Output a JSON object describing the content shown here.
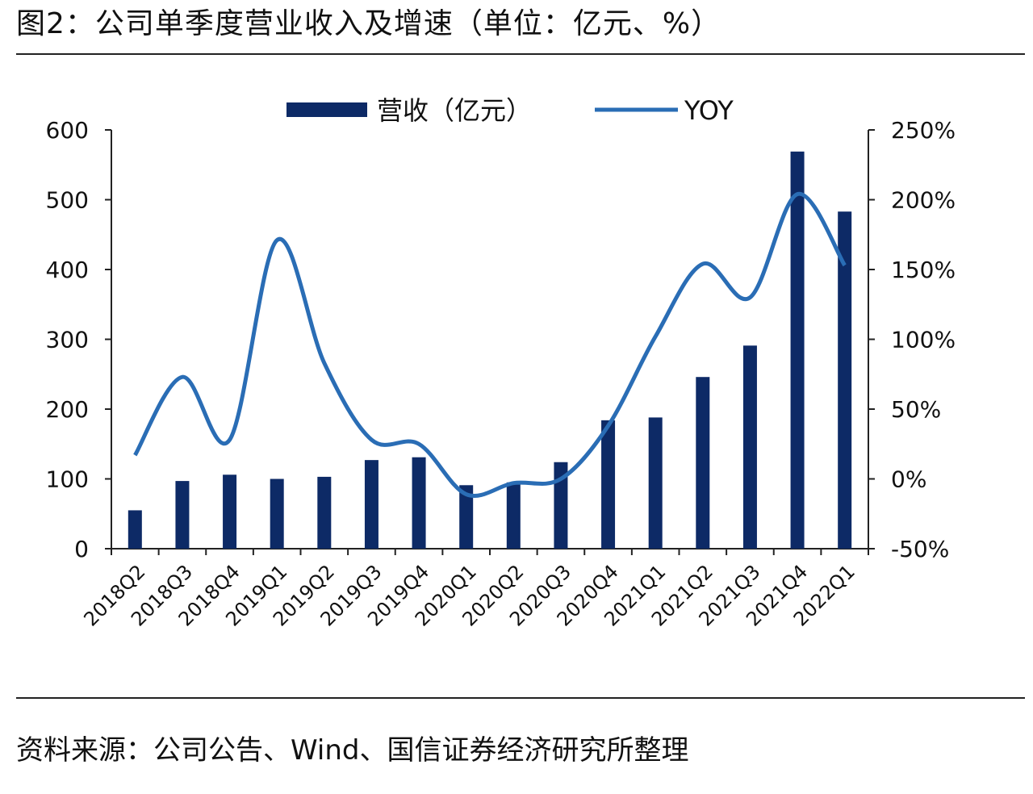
{
  "title": "图2：公司单季度营业收入及增速（单位：亿元、%）",
  "source": "资料来源：公司公告、Wind、国信证券经济研究所整理",
  "chart_data": {
    "type": "bar+line",
    "categories": [
      "2018Q2",
      "2018Q3",
      "2018Q4",
      "2019Q1",
      "2019Q2",
      "2019Q3",
      "2019Q4",
      "2020Q1",
      "2020Q2",
      "2020Q3",
      "2020Q4",
      "2021Q1",
      "2021Q2",
      "2021Q3",
      "2021Q4",
      "2022Q1"
    ],
    "series": [
      {
        "name": "营收（亿元）",
        "type": "bar",
        "axis": "left",
        "color": "#0d2a66",
        "values": [
          55,
          97,
          106,
          100,
          103,
          127,
          131,
          91,
          95,
          124,
          184,
          188,
          246,
          291,
          569,
          483
        ]
      },
      {
        "name": "YOY",
        "type": "line",
        "axis": "right",
        "color": "#2a6db5",
        "values": [
          17,
          73,
          28,
          171,
          83,
          28,
          25,
          -11,
          -3,
          0,
          38,
          102,
          154,
          130,
          204,
          153
        ]
      }
    ],
    "left_axis": {
      "ylim": [
        0,
        600
      ],
      "ticks": [
        "0",
        "100",
        "200",
        "300",
        "400",
        "500",
        "600"
      ]
    },
    "right_axis": {
      "ylim": [
        -50,
        250
      ],
      "ticks": [
        "-50%",
        "0%",
        "50%",
        "100%",
        "150%",
        "200%",
        "250%"
      ]
    },
    "legend_position": "top",
    "grid": false
  }
}
